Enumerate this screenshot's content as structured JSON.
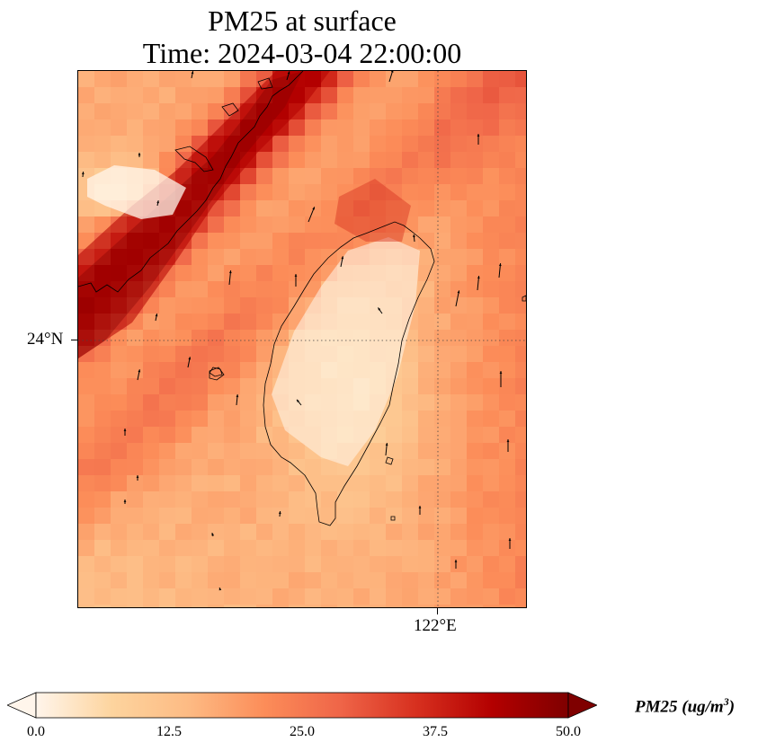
{
  "title_line1": "PM25 at surface",
  "title_line2": "Time: 2024-03-04 22:00:00",
  "map": {
    "lat_gridline_label": "24°N",
    "lon_gridline_label": "122°E",
    "colormap": [
      "#fff5eb",
      "#fdd49e",
      "#fdbb84",
      "#fc8d59",
      "#ef6548",
      "#d7301f",
      "#b30000",
      "#7f0000"
    ],
    "coastline_color": "#000000",
    "wind_vectors_shown": true
  },
  "colorbar": {
    "min": 0.0,
    "max": 50.0,
    "ticks": [
      "0.0",
      "12.5",
      "25.0",
      "37.5",
      "50.0"
    ],
    "label_text": "PM25 (ug/m",
    "label_exponent": "3",
    "label_close": ")",
    "extend": "both"
  }
}
